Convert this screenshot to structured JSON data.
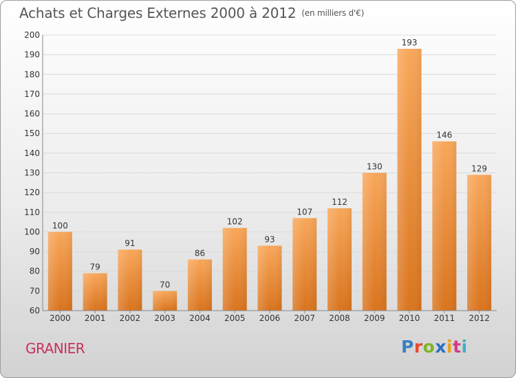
{
  "title": "Achats et Charges Externes 2000 à 2012",
  "unit": "(en milliers d'€)",
  "commune": "GRANIER",
  "logo": {
    "text": "Proxiti",
    "colors": [
      "#3b7fc4",
      "#e84b2a",
      "#7fb429",
      "#2a6fc4",
      "#e8a020",
      "#d23b8a",
      "#3bb0c4"
    ]
  },
  "colors": {
    "bar_top": "#f8a75a",
    "bar_bottom": "#d9741e",
    "grid": "#dadada",
    "commune": "#c8325a",
    "title": "#555555"
  },
  "chart_data": {
    "type": "bar",
    "title": "Achats et Charges Externes 2000 à 2012",
    "categories": [
      "2000",
      "2001",
      "2002",
      "2003",
      "2004",
      "2005",
      "2006",
      "2007",
      "2008",
      "2009",
      "2010",
      "2011",
      "2012"
    ],
    "values": [
      100,
      79,
      91,
      70,
      86,
      102,
      93,
      107,
      112,
      130,
      193,
      146,
      129
    ],
    "ylim": [
      60,
      200
    ],
    "yticks": [
      60,
      70,
      80,
      90,
      100,
      110,
      120,
      130,
      140,
      150,
      160,
      170,
      180,
      190,
      200
    ],
    "grid": true,
    "data_labels": true
  }
}
